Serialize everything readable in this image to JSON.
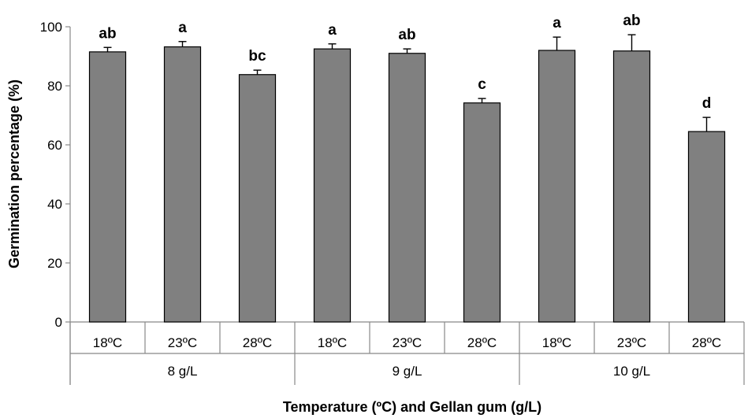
{
  "chart_data": {
    "type": "bar",
    "xlabel": "Temperature (ºC) and Gellan gum (g/L)",
    "ylabel": "Germination percentage (%)",
    "ylim": [
      0,
      100
    ],
    "yticks": [
      "0",
      "20",
      "40",
      "60",
      "80",
      "100"
    ],
    "grid": false,
    "bar_color": "#808080",
    "groups": [
      "8 g/L",
      "9 g/L",
      "10 g/L"
    ],
    "categories": [
      "18ºC",
      "23ºC",
      "28ºC",
      "18ºC",
      "23ºC",
      "28ºC",
      "18ºC",
      "23ºC",
      "28ºC"
    ],
    "values": [
      91.5,
      93.2,
      83.8,
      92.5,
      91.0,
      74.2,
      92.0,
      91.8,
      64.5
    ],
    "errors": [
      1.5,
      1.8,
      1.5,
      1.7,
      1.5,
      1.5,
      4.5,
      5.5,
      4.8
    ],
    "significance": [
      "ab",
      "a",
      "bc",
      "a",
      "ab",
      "c",
      "a",
      "ab",
      "d"
    ]
  }
}
